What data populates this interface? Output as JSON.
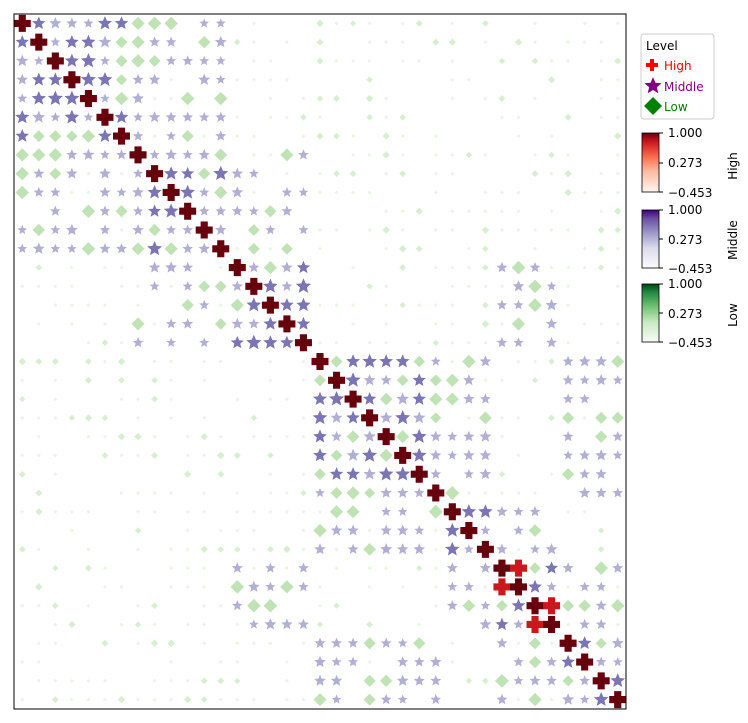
{
  "chart_data": {
    "type": "heatmap",
    "marker_style": "correlation matrix with level-coded markers (size and color intensity scale with value)",
    "n": 37,
    "value_range": [
      -0.453,
      1.0
    ],
    "grid": false,
    "title": "",
    "xlabel": "",
    "ylabel": "",
    "legend": {
      "title": "Level",
      "placement": "top-right, outside plot",
      "entries": [
        {
          "label": "High",
          "marker": "plus",
          "color": "#ff0000"
        },
        {
          "label": "Middle",
          "marker": "star",
          "color": "#800080"
        },
        {
          "label": "Low",
          "marker": "diamond",
          "color": "#008000"
        }
      ]
    },
    "colorbars": [
      {
        "label": "High",
        "cmap": "Reds",
        "ticks": [
          "1.000",
          "0.273",
          "−0.453"
        ]
      },
      {
        "label": "Middle",
        "cmap": "Purples",
        "ticks": [
          "1.000",
          "0.273",
          "−0.453"
        ]
      },
      {
        "label": "Low",
        "cmap": "Greens",
        "ticks": [
          "1.000",
          "0.273",
          "−0.453"
        ]
      }
    ],
    "level_thresholds": {
      "high": 0.75,
      "middle": 0.35
    },
    "groups": [
      [
        0,
        7
      ],
      [
        7,
        13
      ],
      [
        13,
        18
      ],
      [
        18,
        26
      ],
      [
        26,
        29
      ],
      [
        29,
        33
      ],
      [
        33,
        37
      ]
    ],
    "related_group_pairs": [
      [
        0,
        1
      ],
      [
        1,
        2
      ],
      [
        3,
        4
      ],
      [
        4,
        5
      ],
      [
        5,
        6
      ],
      [
        2,
        5
      ],
      [
        3,
        6
      ]
    ],
    "strong_offdiagonal": [
      [
        29,
        30
      ],
      [
        31,
        32
      ]
    ]
  }
}
